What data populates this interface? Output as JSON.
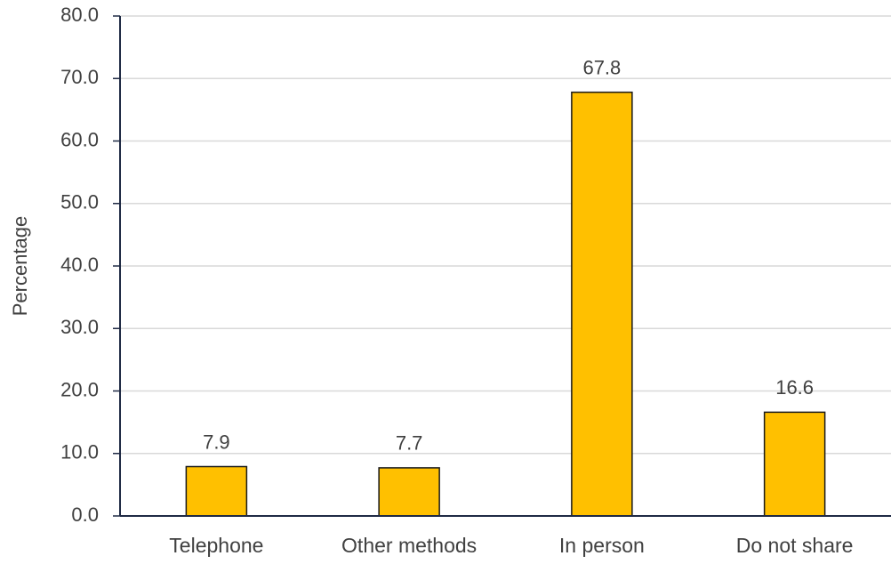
{
  "chart_data": {
    "type": "bar",
    "y_label": "Percentage",
    "categories": [
      "Telephone",
      "Other methods",
      "In person",
      "Do not share"
    ],
    "values": [
      7.9,
      7.7,
      67.8,
      16.6
    ],
    "color": "#ffc000",
    "edge_color": "#1a1a1a",
    "ylim": [
      0,
      80
    ],
    "yticks": [
      {
        "value": 0,
        "label": "0.0"
      },
      {
        "value": 10,
        "label": "10.0"
      },
      {
        "value": 20,
        "label": "20.0"
      },
      {
        "value": 30,
        "label": "30.0"
      },
      {
        "value": 40,
        "label": "40.0"
      },
      {
        "value": 50,
        "label": "50.0"
      },
      {
        "value": 60,
        "label": "60.0"
      },
      {
        "value": 70,
        "label": "70.0"
      },
      {
        "value": 80,
        "label": "80.0"
      }
    ],
    "grid": true
  }
}
